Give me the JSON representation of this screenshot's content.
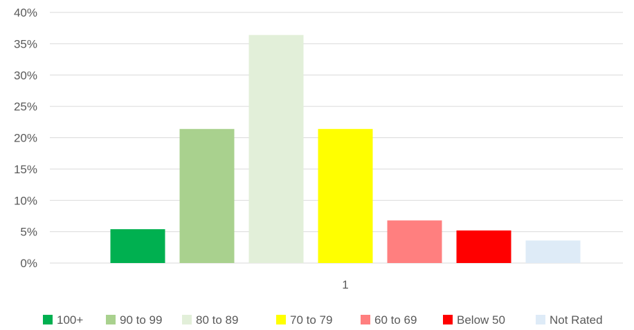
{
  "chart_data": {
    "type": "bar",
    "categories": [
      "1"
    ],
    "series": [
      {
        "name": "100+",
        "values": [
          5.4
        ],
        "color": "#00b050"
      },
      {
        "name": "90 to 99",
        "values": [
          21.4
        ],
        "color": "#a9d18e"
      },
      {
        "name": "80 to 89",
        "values": [
          36.4
        ],
        "color": "#e2efd9"
      },
      {
        "name": "70 to 79",
        "values": [
          21.4
        ],
        "color": "#ffff00"
      },
      {
        "name": "60 to 69",
        "values": [
          6.8
        ],
        "color": "#ff7f7f"
      },
      {
        "name": "Below 50",
        "values": [
          5.2
        ],
        "color": "#ff0000"
      },
      {
        "name": "Not Rated",
        "values": [
          3.6
        ],
        "color": "#deebf7"
      }
    ],
    "yticks": [
      "0%",
      "5%",
      "10%",
      "15%",
      "20%",
      "25%",
      "30%",
      "35%",
      "40%"
    ],
    "ylim": [
      0,
      40
    ],
    "grid": true,
    "legend": "bottom",
    "title": "",
    "xlabel": "",
    "ylabel": ""
  }
}
